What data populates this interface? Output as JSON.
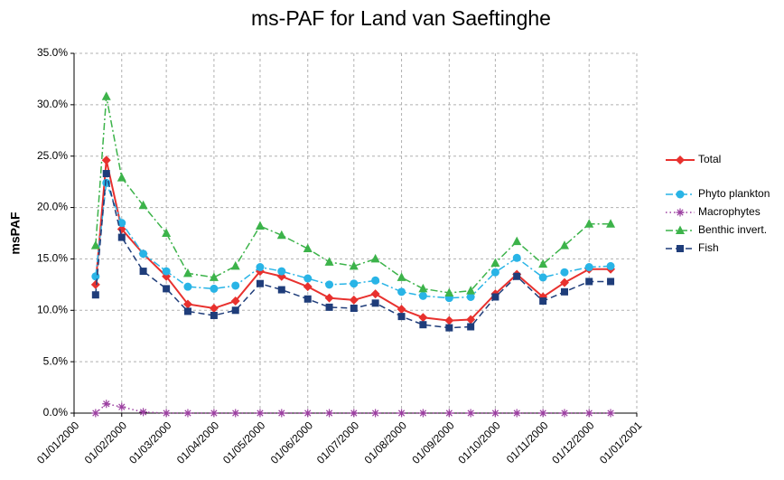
{
  "chart_data": {
    "type": "line",
    "title": "ms-PAF for Land van Saeftinghe",
    "y_label": "msPAF",
    "x": [
      "2000-01-15",
      "2000-01-22",
      "2000-02-01",
      "2000-02-15",
      "2000-03-01",
      "2000-03-15",
      "2000-04-01",
      "2000-04-15",
      "2000-05-01",
      "2000-05-15",
      "2000-06-01",
      "2000-06-15",
      "2000-07-01",
      "2000-07-15",
      "2000-08-01",
      "2000-08-15",
      "2000-09-01",
      "2000-09-15",
      "2000-10-01",
      "2000-10-15",
      "2000-11-01",
      "2000-11-15",
      "2000-12-01",
      "2000-12-15"
    ],
    "series": [
      {
        "name": "Total",
        "color": "#e8312e",
        "dash": "none",
        "marker": "diamond",
        "values": [
          12.5,
          24.6,
          17.9,
          15.5,
          13.3,
          10.6,
          10.2,
          10.9,
          13.8,
          13.3,
          12.3,
          11.2,
          11.0,
          11.6,
          10.1,
          9.3,
          9.0,
          9.1,
          11.6,
          13.5,
          11.3,
          12.7,
          14.0,
          14.0
        ]
      },
      {
        "name": "Phyto plankton",
        "color": "#29b4e6",
        "dash": "dashdot",
        "marker": "circle",
        "values": [
          13.3,
          22.4,
          18.5,
          15.5,
          13.8,
          12.3,
          12.1,
          12.4,
          14.2,
          13.8,
          13.1,
          12.5,
          12.6,
          12.9,
          11.8,
          11.4,
          11.2,
          11.3,
          13.7,
          15.1,
          13.2,
          13.7,
          14.2,
          14.3
        ]
      },
      {
        "name": "Macrophytes",
        "color": "#9b3fa0",
        "dash": "dot",
        "marker": "asterisk",
        "values": [
          0,
          0.9,
          0.6,
          0.1,
          0,
          0,
          0,
          0,
          0,
          0,
          0,
          0,
          0,
          0,
          0,
          0,
          0,
          0,
          0,
          0,
          0,
          0,
          0,
          0
        ]
      },
      {
        "name": "Benthic invert.",
        "color": "#3cb34a",
        "dash": "dashdot",
        "marker": "triangle",
        "values": [
          16.3,
          30.8,
          22.9,
          20.2,
          17.5,
          13.6,
          13.2,
          14.3,
          18.2,
          17.3,
          16.0,
          14.7,
          14.3,
          15.0,
          13.2,
          12.1,
          11.7,
          11.9,
          14.6,
          16.7,
          14.5,
          16.3,
          18.4,
          18.4
        ]
      },
      {
        "name": "Fish",
        "color": "#1f3d7a",
        "dash": "dash",
        "marker": "square",
        "values": [
          11.5,
          23.3,
          17.1,
          13.8,
          12.1,
          9.9,
          9.5,
          10.0,
          12.6,
          12.0,
          11.1,
          10.3,
          10.2,
          10.7,
          9.4,
          8.6,
          8.3,
          8.4,
          11.3,
          13.3,
          10.9,
          11.8,
          12.8,
          12.8
        ]
      }
    ],
    "xlim": [
      "2000-01-01",
      "2001-01-01"
    ],
    "xticks": [
      {
        "value": "2000-01-01",
        "label": "01/01/2000"
      },
      {
        "value": "2000-02-01",
        "label": "01/02/2000"
      },
      {
        "value": "2000-03-01",
        "label": "01/03/2000"
      },
      {
        "value": "2000-04-01",
        "label": "01/04/2000"
      },
      {
        "value": "2000-05-01",
        "label": "01/05/2000"
      },
      {
        "value": "2000-06-01",
        "label": "01/06/2000"
      },
      {
        "value": "2000-07-01",
        "label": "01/07/2000"
      },
      {
        "value": "2000-08-01",
        "label": "01/08/2000"
      },
      {
        "value": "2000-09-01",
        "label": "01/09/2000"
      },
      {
        "value": "2000-10-01",
        "label": "01/10/2000"
      },
      {
        "value": "2000-11-01",
        "label": "01/11/2000"
      },
      {
        "value": "2000-12-01",
        "label": "01/12/2000"
      },
      {
        "value": "2001-01-01",
        "label": "01/01/2001"
      }
    ],
    "ylim": [
      0,
      35
    ],
    "yticks": [
      {
        "value": 0,
        "label": "0.0%"
      },
      {
        "value": 5,
        "label": "5.0%"
      },
      {
        "value": 10,
        "label": "10.0%"
      },
      {
        "value": 15,
        "label": "15.0%"
      },
      {
        "value": 20,
        "label": "20.0%"
      },
      {
        "value": 25,
        "label": "25.0%"
      },
      {
        "value": 30,
        "label": "30.0%"
      },
      {
        "value": 35,
        "label": "35.0%"
      }
    ],
    "grid": true,
    "legend": "right"
  }
}
